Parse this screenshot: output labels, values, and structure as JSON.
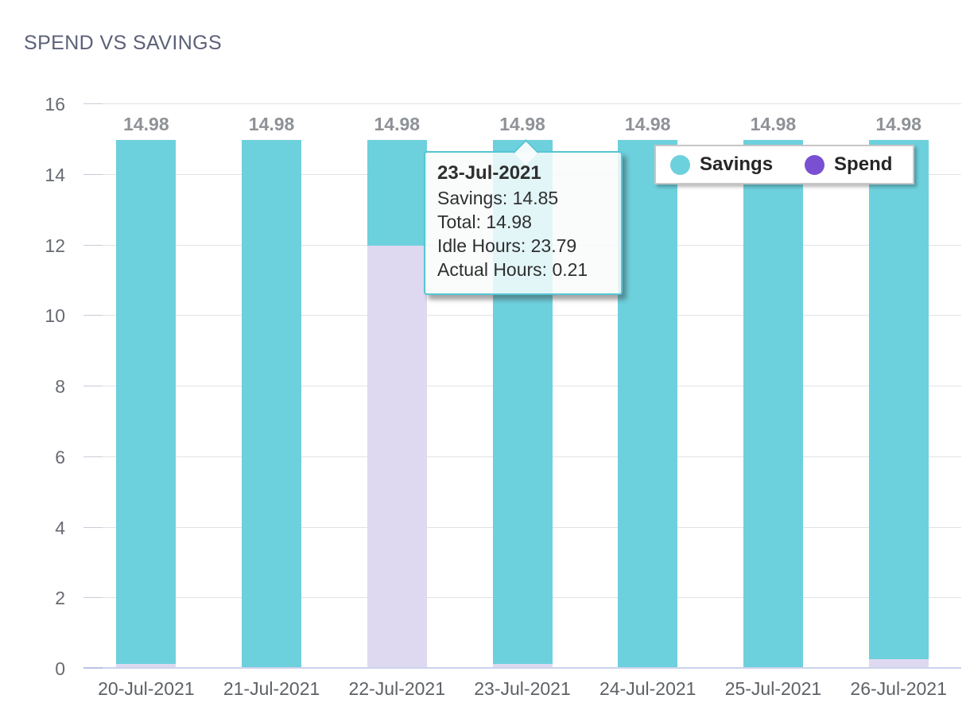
{
  "title": "SPEND VS SAVINGS",
  "chart_data": {
    "type": "bar",
    "stacked": true,
    "title": "SPEND VS SAVINGS",
    "categories": [
      "20-Jul-2021",
      "21-Jul-2021",
      "22-Jul-2021",
      "23-Jul-2021",
      "24-Jul-2021",
      "25-Jul-2021",
      "26-Jul-2021"
    ],
    "series": [
      {
        "name": "Spend",
        "bar_color": "#ded9f0",
        "values": [
          0.13,
          0,
          12.0,
          0.13,
          0,
          0,
          0.27
        ]
      },
      {
        "name": "Savings",
        "bar_color": "#6dd0dd",
        "values": [
          14.85,
          14.98,
          2.98,
          14.85,
          14.98,
          14.98,
          14.71
        ]
      }
    ],
    "bar_labels": [
      "14.98",
      "14.98",
      "14.98",
      "14.98",
      "14.98",
      "14.98",
      "14.98"
    ],
    "ylim": [
      0,
      16
    ],
    "yticks": [
      0,
      2,
      4,
      6,
      8,
      10,
      12,
      14,
      16
    ],
    "grid": true,
    "legend_position": "top-right"
  },
  "legend": {
    "items": [
      {
        "label": "Savings",
        "color": "#6dd0dd"
      },
      {
        "label": "Spend",
        "color": "#7a50d2"
      }
    ]
  },
  "tooltip": {
    "title": "23-Jul-2021",
    "lines": [
      "Savings: 14.85",
      "Total: 14.98",
      "Idle Hours: 23.79",
      "Actual Hours: 0.21"
    ]
  },
  "colors": {
    "savings_bar": "#6dd0dd",
    "spend_bar": "#ded9f0",
    "spend_legend": "#7a50d2",
    "tooltip_border": "#57c5d3",
    "gridline": "#e1e2e5",
    "axis_line": "#ccd3ec",
    "title_text": "#5c6078",
    "bar_value_text": "#8e9297"
  }
}
